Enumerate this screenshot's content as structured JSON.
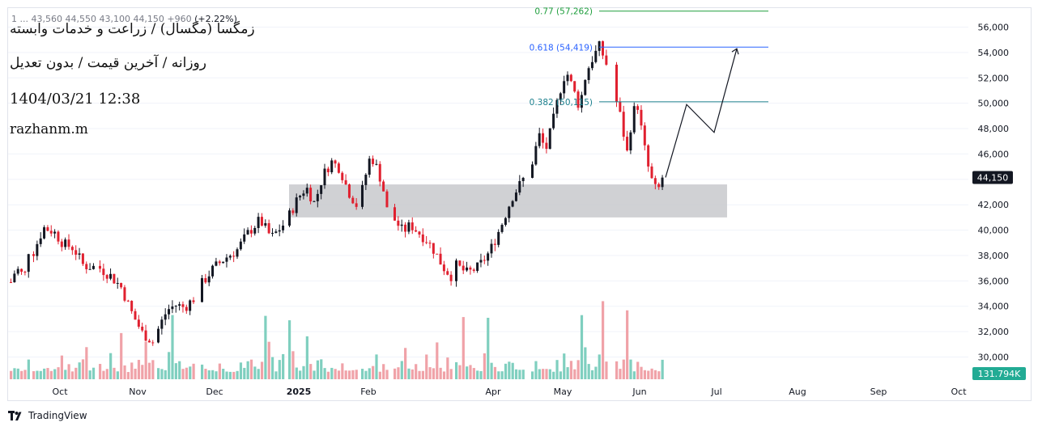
{
  "header": {
    "ohlc_text": "1 ...  43,560  44,550  43,100  44,150  +960",
    "change_pct": "(+2.22%)",
    "symbol_title": "زمگسا (مگسال) / زراعت و خدمات وابسته",
    "subtitle": "روزانه / آخرین قیمت / بدون تعدیل",
    "timestamp": "1404/03/21 12:38",
    "author": "razhanm.m"
  },
  "footer": {
    "brand": "TradingView"
  },
  "colors": {
    "up": "#131722",
    "down": "#e0202f",
    "vol_up": "#7fcfbf",
    "vol_down": "#f0a2a8",
    "fib_077": "#1e9e3c",
    "fib_0618": "#2962ff",
    "fib_0382": "#1a7f8c",
    "zone": "#c8c9cc"
  },
  "chart_data": {
    "type": "candlestick",
    "y_axis": {
      "ticks": [
        30000,
        32000,
        34000,
        36000,
        38000,
        40000,
        42000,
        44000,
        46000,
        48000,
        50000,
        52000,
        54000,
        56000
      ],
      "tick_labels": [
        "30,000",
        "32,000",
        "34,000",
        "36,000",
        "38,000",
        "40,000",
        "42,000",
        "44,000",
        "46,000",
        "48,000",
        "50,000",
        "52,000",
        "54,000",
        "56,000"
      ],
      "ylim": [
        29000,
        57600
      ]
    },
    "x_axis": {
      "tick_labels": [
        "Oct",
        "Nov",
        "Dec",
        "2025",
        "Feb",
        "Apr",
        "May",
        "Jun",
        "Jul",
        "Aug",
        "Sep",
        "Oct"
      ]
    },
    "last_price_label": "44,150",
    "last_price": 44150,
    "volume_label": "131.794K",
    "fib_levels": [
      {
        "ratio": "0.77",
        "value_label": "(57,262)",
        "price": 57262
      },
      {
        "ratio": "0.618",
        "value_label": "(54,419)",
        "price": 54419
      },
      {
        "ratio": "0.382",
        "value_label": "(50,115)",
        "price": 50115
      }
    ],
    "support_zone": {
      "low": 41000,
      "high": 43600
    },
    "projection_path": [
      44150,
      49900,
      47700,
      54300
    ],
    "candle_segments": [
      [
        35900,
        36800,
        36900,
        36100,
        38400
      ],
      [
        38300,
        40200,
        39900,
        38900,
        38600,
        37200,
        37100
      ],
      [
        37000,
        36400,
        35500,
        33500,
        31900,
        31200
      ],
      [
        32200,
        33700,
        34100,
        33900,
        34600
      ],
      [
        35800,
        37000,
        37800,
        38400,
        39800,
        40800,
        39400,
        40400
      ],
      [
        41200,
        42500,
        43400,
        42100,
        44300,
        45400,
        44900,
        43100,
        42000
      ],
      [
        43200,
        44600,
        45900,
        45300,
        44500,
        43400,
        41600
      ],
      [
        40800,
        39900,
        40400,
        39800,
        39200,
        38300,
        37100,
        36400
      ],
      [
        37200,
        36600,
        37100,
        38300,
        40300,
        42600,
        44000
      ],
      [
        45400,
        47500,
        46300,
        48400,
        50800,
        52600,
        51200,
        49700,
        52400,
        53600,
        54500,
        53100
      ],
      [
        50100,
        48600,
        45900,
        48800,
        50200,
        47600,
        45300,
        43800,
        42900,
        44150
      ]
    ],
    "volume_profile_hint": [
      1,
      1,
      1,
      1,
      1,
      2,
      1,
      1,
      1,
      1,
      1,
      1,
      1,
      2,
      3,
      1,
      2,
      1,
      1,
      2,
      3,
      4,
      1,
      1,
      2,
      1,
      1,
      3,
      2,
      1,
      7,
      2,
      1,
      3,
      1,
      2,
      2,
      8,
      2,
      2,
      1,
      1,
      1,
      3,
      8,
      2,
      2,
      1,
      1,
      2,
      3,
      2,
      1,
      1,
      1,
      1,
      2,
      1,
      1,
      1,
      1,
      1,
      2,
      1,
      3,
      2,
      2,
      1,
      2,
      11,
      6,
      3,
      1,
      2,
      5,
      11,
      3,
      2,
      1,
      2,
      9,
      3,
      1,
      2,
      2
    ]
  }
}
